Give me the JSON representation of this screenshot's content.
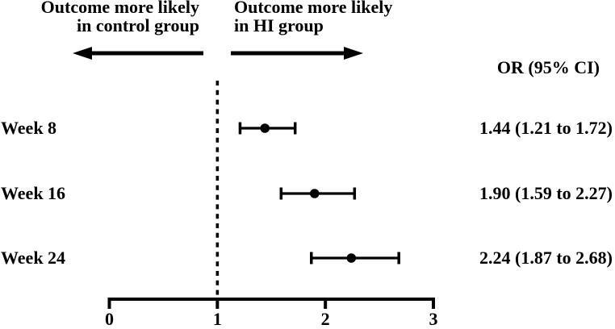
{
  "colors": {
    "ink": "#000000",
    "background": "#ffffff"
  },
  "chart_data": {
    "type": "forest",
    "title": "",
    "annotations": {
      "left": {
        "lines": [
          "Outcome more likely",
          "in control group"
        ],
        "arrow": "left-arrow"
      },
      "right": {
        "lines": [
          "Outcome more likely",
          "in HI group"
        ],
        "arrow": "right-arrow"
      }
    },
    "column_header": "OR (95% CI)",
    "rows": [
      {
        "label": "Week 8",
        "or": 1.44,
        "ci_low": 1.21,
        "ci_high": 1.72,
        "or_ci_text": "1.44 (1.21 to 1.72)"
      },
      {
        "label": "Week 16",
        "or": 1.9,
        "ci_low": 1.59,
        "ci_high": 2.27,
        "or_ci_text": "1.90 (1.59 to 2.27)"
      },
      {
        "label": "Week 24",
        "or": 2.24,
        "ci_low": 1.87,
        "ci_high": 2.68,
        "or_ci_text": "2.24 (1.87 to 2.68)"
      }
    ],
    "x_axis": {
      "min": 0,
      "max": 3,
      "ticks": [
        0,
        1,
        2,
        3
      ],
      "reference_line": 1
    },
    "xlabel": "",
    "grid": false,
    "legend_position": "none"
  }
}
